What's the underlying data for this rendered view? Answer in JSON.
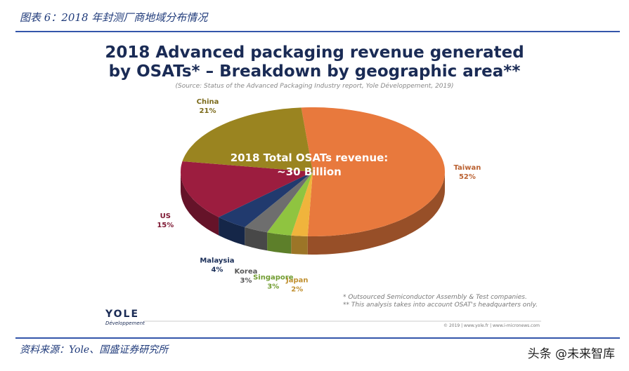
{
  "header": "图表 6：2018 年封测厂商地域分布情况",
  "chart_data": {
    "type": "pie",
    "title": "2018 Advanced packaging revenue generated by OSATs* – Breakdown by geographic area**",
    "subtitle": "(Source: Status of the Advanced Packaging Industry report, Yole Développement, 2019)",
    "center_text": [
      "2018 Total OSATs revenue:",
      "~30 Billion"
    ],
    "categories": [
      "Taiwan",
      "Japan",
      "Singapore",
      "Korea",
      "Malaysia",
      "US",
      "China"
    ],
    "values": [
      52,
      2,
      3,
      3,
      4,
      15,
      21
    ],
    "value_labels": [
      "52%",
      "2%",
      "3%",
      "3%",
      "4%",
      "15%",
      "21%"
    ],
    "colors": [
      "#e8793d",
      "#f0b43c",
      "#8fc440",
      "#6e6e6e",
      "#213a6e",
      "#9c1d3f",
      "#9a8420"
    ],
    "footnotes": [
      "* Outsourced Semiconductor Assembly & Test companies.",
      "** This analysis takes into account OSAT's headquarters only."
    ],
    "logo": {
      "name": "YOLE",
      "tagline": "Développement"
    },
    "copyright": "© 2019 | www.yole.fr | www.i-micronews.com"
  },
  "footer": "资料来源：Yole、国盛证券研究所",
  "watermark": "头条 @未来智库"
}
